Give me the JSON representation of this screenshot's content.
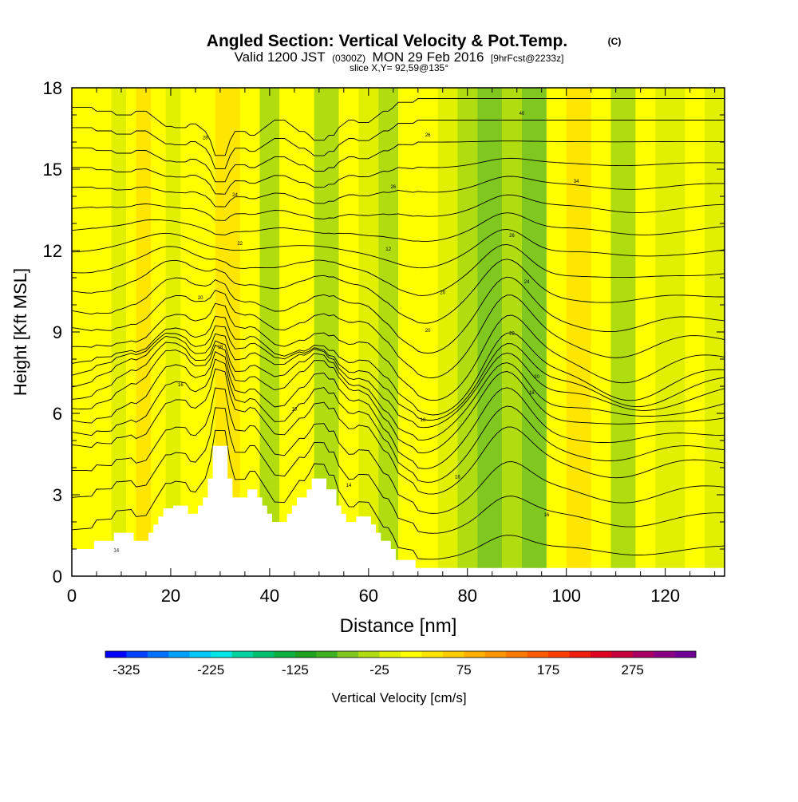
{
  "chart_data": {
    "type": "heatmap",
    "title": "Angled Section: Vertical Velocity & Pot.Temp.",
    "title_units": "(C)",
    "subtitle": {
      "prefix": "Valid 1200 JST",
      "zulu": "(0300Z)",
      "date": "MON 29 Feb 2016",
      "forecast": "[9hrFcst@2233z]"
    },
    "slice_text": "slice X,Y= 92,59@135°",
    "xlabel": "Distance [nm]",
    "ylabel": "Height [Kft MSL]",
    "xlim": [
      0,
      132
    ],
    "ylim": [
      0,
      18
    ],
    "x_ticks": [
      {
        "value": 0,
        "label": "0"
      },
      {
        "value": 20,
        "label": "20"
      },
      {
        "value": 40,
        "label": "40"
      },
      {
        "value": 60,
        "label": "60"
      },
      {
        "value": 80,
        "label": "80"
      },
      {
        "value": 100,
        "label": "100"
      },
      {
        "value": 120,
        "label": "120"
      }
    ],
    "y_ticks": [
      {
        "value": 0,
        "label": "0"
      },
      {
        "value": 3,
        "label": "3"
      },
      {
        "value": 6,
        "label": "6"
      },
      {
        "value": 9,
        "label": "9"
      },
      {
        "value": 12,
        "label": "12"
      },
      {
        "value": 15,
        "label": "15"
      },
      {
        "value": 18,
        "label": "18"
      }
    ],
    "colorbar": {
      "label": "Vertical Velocity [cm/s]",
      "range": [
        -350,
        350
      ],
      "colors": [
        "#0000ff",
        "#0040ff",
        "#0070ff",
        "#00a0ff",
        "#00c8ff",
        "#00e6e6",
        "#00d2a0",
        "#00c070",
        "#10b040",
        "#20a020",
        "#40b020",
        "#80c820",
        "#b0dc10",
        "#e0f000",
        "#ffff00",
        "#ffe600",
        "#ffcc00",
        "#ffb000",
        "#ff9600",
        "#ff7800",
        "#ff5a00",
        "#ff3c00",
        "#f01e10",
        "#e00020",
        "#c8003c",
        "#aa0064",
        "#8c0082",
        "#6e0096"
      ],
      "tick_labels": [
        {
          "value": -325,
          "label": "-325"
        },
        {
          "value": -225,
          "label": "-225"
        },
        {
          "value": -125,
          "label": "-125"
        },
        {
          "value": -25,
          "label": "-25"
        },
        {
          "value": 75,
          "label": "75"
        },
        {
          "value": 175,
          "label": "175"
        },
        {
          "value": 275,
          "label": "275"
        }
      ]
    },
    "velocity_bands": [
      {
        "x0": 0,
        "x1": 5,
        "value": 15
      },
      {
        "x0": 5,
        "x1": 8,
        "value": 0
      },
      {
        "x0": 8,
        "x1": 11,
        "value": -15
      },
      {
        "x0": 11,
        "x1": 13,
        "value": 8
      },
      {
        "x0": 13,
        "x1": 16,
        "value": 45
      },
      {
        "x0": 16,
        "x1": 19,
        "value": 0
      },
      {
        "x0": 19,
        "x1": 22,
        "value": -25
      },
      {
        "x0": 22,
        "x1": 26,
        "value": 10
      },
      {
        "x0": 26,
        "x1": 29,
        "value": 0
      },
      {
        "x0": 29,
        "x1": 34,
        "value": 40
      },
      {
        "x0": 34,
        "x1": 38,
        "value": 5
      },
      {
        "x0": 38,
        "x1": 42,
        "value": -30
      },
      {
        "x0": 42,
        "x1": 46,
        "value": 10
      },
      {
        "x0": 46,
        "x1": 49,
        "value": 0
      },
      {
        "x0": 49,
        "x1": 54,
        "value": -30
      },
      {
        "x0": 54,
        "x1": 58,
        "value": 0
      },
      {
        "x0": 58,
        "x1": 62,
        "value": -10
      },
      {
        "x0": 62,
        "x1": 66,
        "value": -35
      },
      {
        "x0": 66,
        "x1": 70,
        "value": 10
      },
      {
        "x0": 70,
        "x1": 74,
        "value": 0
      },
      {
        "x0": 74,
        "x1": 78,
        "value": -10
      },
      {
        "x0": 78,
        "x1": 82,
        "value": -30
      },
      {
        "x0": 82,
        "x1": 87,
        "value": -70
      },
      {
        "x0": 87,
        "x1": 91,
        "value": -30
      },
      {
        "x0": 91,
        "x1": 96,
        "value": -55
      },
      {
        "x0": 96,
        "x1": 100,
        "value": 5
      },
      {
        "x0": 100,
        "x1": 105,
        "value": 30
      },
      {
        "x0": 105,
        "x1": 109,
        "value": 5
      },
      {
        "x0": 109,
        "x1": 114,
        "value": -30
      },
      {
        "x0": 114,
        "x1": 118,
        "value": 0
      },
      {
        "x0": 118,
        "x1": 124,
        "value": -15
      },
      {
        "x0": 124,
        "x1": 128,
        "value": 0
      },
      {
        "x0": 128,
        "x1": 132,
        "value": -25
      }
    ],
    "terrain": [
      [
        0,
        1.0
      ],
      [
        4.5,
        1.0
      ],
      [
        4.5,
        1.3
      ],
      [
        8.5,
        1.3
      ],
      [
        8.5,
        1.6
      ],
      [
        12.5,
        1.6
      ],
      [
        12.5,
        1.3
      ],
      [
        15.5,
        1.3
      ],
      [
        15.5,
        1.6
      ],
      [
        16.5,
        1.6
      ],
      [
        16.5,
        1.9
      ],
      [
        17.5,
        1.9
      ],
      [
        17.5,
        2.2
      ],
      [
        18.5,
        2.2
      ],
      [
        18.5,
        2.5
      ],
      [
        20.5,
        2.5
      ],
      [
        20.5,
        2.6
      ],
      [
        23.5,
        2.6
      ],
      [
        23.5,
        2.3
      ],
      [
        25.5,
        2.3
      ],
      [
        25.5,
        2.6
      ],
      [
        26.5,
        2.6
      ],
      [
        26.5,
        2.9
      ],
      [
        27.5,
        2.9
      ],
      [
        27.5,
        3.6
      ],
      [
        28.5,
        3.6
      ],
      [
        28.5,
        4.8
      ],
      [
        31.5,
        4.8
      ],
      [
        31.5,
        3.6
      ],
      [
        32.5,
        3.6
      ],
      [
        32.5,
        2.9
      ],
      [
        35.5,
        2.9
      ],
      [
        35.5,
        3.2
      ],
      [
        37.5,
        3.2
      ],
      [
        37.5,
        2.9
      ],
      [
        38.5,
        2.9
      ],
      [
        38.5,
        2.6
      ],
      [
        39.5,
        2.6
      ],
      [
        39.5,
        2.3
      ],
      [
        40.5,
        2.3
      ],
      [
        40.5,
        2.0
      ],
      [
        43.5,
        2.0
      ],
      [
        43.5,
        2.3
      ],
      [
        44.5,
        2.3
      ],
      [
        44.5,
        2.6
      ],
      [
        45.5,
        2.6
      ],
      [
        45.5,
        2.9
      ],
      [
        47.5,
        2.9
      ],
      [
        47.5,
        3.2
      ],
      [
        48.5,
        3.2
      ],
      [
        48.5,
        3.6
      ],
      [
        51.5,
        3.6
      ],
      [
        51.5,
        3.2
      ],
      [
        53.5,
        3.2
      ],
      [
        53.5,
        2.6
      ],
      [
        54.5,
        2.6
      ],
      [
        54.5,
        2.3
      ],
      [
        55.5,
        2.3
      ],
      [
        55.5,
        2.0
      ],
      [
        57.5,
        2.0
      ],
      [
        57.5,
        2.2
      ],
      [
        60.5,
        2.2
      ],
      [
        60.5,
        1.9
      ],
      [
        61.5,
        1.9
      ],
      [
        61.5,
        1.6
      ],
      [
        62.5,
        1.6
      ],
      [
        62.5,
        1.3
      ],
      [
        64.5,
        1.3
      ],
      [
        64.5,
        1.0
      ],
      [
        65.5,
        1.0
      ],
      [
        65.5,
        0.6
      ],
      [
        69.5,
        0.6
      ],
      [
        69.5,
        0.3
      ],
      [
        132,
        0.3
      ]
    ],
    "isentrope_heights": [
      0.8,
      2.0,
      3.0,
      4.0,
      4.6,
      5.2,
      5.8,
      6.2,
      6.6,
      6.9,
      7.2,
      7.8,
      8.6,
      9.4,
      10.3,
      11.1,
      11.9,
      12.7,
      13.5,
      14.3,
      15.1,
      15.9,
      16.7,
      17.5
    ],
    "isentrope_labels": [
      {
        "x": 9,
        "y": 0.9,
        "text": "14"
      },
      {
        "x": 22,
        "y": 7.0,
        "text": "16"
      },
      {
        "x": 45,
        "y": 6.1,
        "text": "18"
      },
      {
        "x": 56,
        "y": 3.3,
        "text": "14"
      },
      {
        "x": 71,
        "y": 5.7,
        "text": "18"
      },
      {
        "x": 78,
        "y": 3.6,
        "text": "16"
      },
      {
        "x": 93,
        "y": 6.7,
        "text": "18"
      },
      {
        "x": 96,
        "y": 2.2,
        "text": "16"
      },
      {
        "x": 30,
        "y": 8.4,
        "text": "18"
      },
      {
        "x": 26,
        "y": 10.2,
        "text": "20"
      },
      {
        "x": 34,
        "y": 12.2,
        "text": "22"
      },
      {
        "x": 33,
        "y": 14.0,
        "text": "24"
      },
      {
        "x": 27,
        "y": 16.1,
        "text": "28"
      },
      {
        "x": 64,
        "y": 12.0,
        "text": "12"
      },
      {
        "x": 65,
        "y": 14.3,
        "text": "26"
      },
      {
        "x": 72,
        "y": 16.2,
        "text": "26"
      },
      {
        "x": 75,
        "y": 10.4,
        "text": "20"
      },
      {
        "x": 72,
        "y": 9.0,
        "text": "20"
      },
      {
        "x": 89,
        "y": 8.9,
        "text": "22"
      },
      {
        "x": 94,
        "y": 7.3,
        "text": "20"
      },
      {
        "x": 92,
        "y": 10.8,
        "text": "24"
      },
      {
        "x": 89,
        "y": 12.5,
        "text": "26"
      },
      {
        "x": 102,
        "y": 14.5,
        "text": "34"
      },
      {
        "x": 91,
        "y": 17.0,
        "text": "40"
      }
    ]
  }
}
